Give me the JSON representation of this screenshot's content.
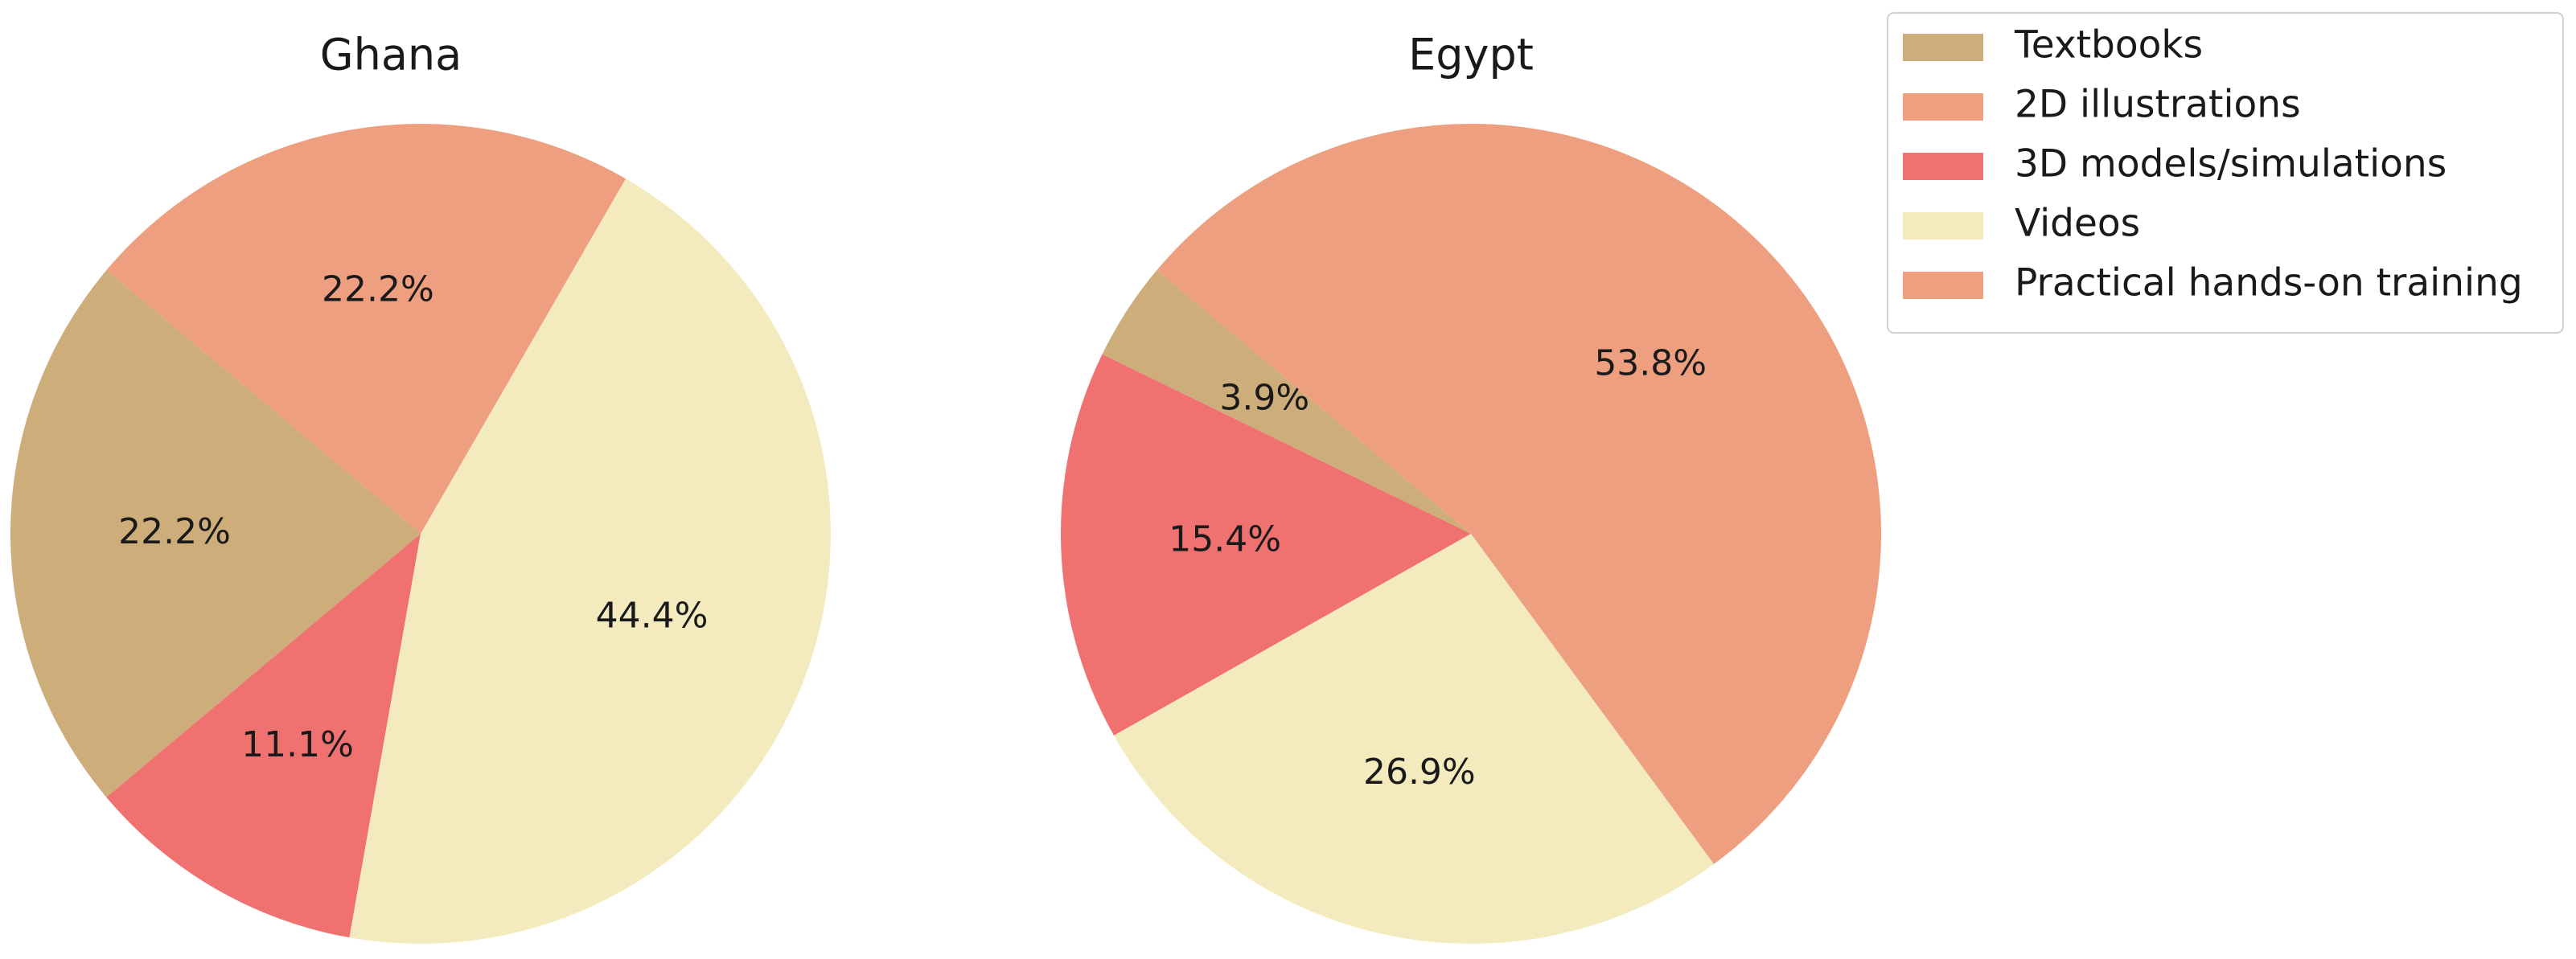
{
  "chart_data": [
    {
      "type": "pie",
      "title": "Ghana",
      "categories": [
        "Textbooks",
        "3D models/simulations",
        "Videos",
        "Practical hands-on training"
      ],
      "values": [
        22.2,
        11.1,
        44.4,
        22.2
      ],
      "value_labels": [
        "22.2%",
        "11.1%",
        "44.4%",
        "22.2%"
      ],
      "colors": [
        "#cdad7a",
        "#ef7270",
        "#f3ebbe",
        "#ee9f80"
      ],
      "start_angle": 140,
      "counterclockwise": true
    },
    {
      "type": "pie",
      "title": "Egypt",
      "categories": [
        "Textbooks",
        "3D models/simulations",
        "Videos",
        "Practical hands-on training"
      ],
      "values": [
        3.9,
        15.4,
        26.9,
        53.8
      ],
      "value_labels": [
        "3.9%",
        "15.4%",
        "26.9%",
        "53.8%"
      ],
      "colors": [
        "#cdad7a",
        "#ef7270",
        "#f3ebbe",
        "#ee9f80"
      ],
      "start_angle": 140,
      "counterclockwise": true
    }
  ],
  "legend": {
    "location": "upper right",
    "entries": [
      {
        "name": "Textbooks",
        "color": "#cdad7a"
      },
      {
        "name": "2D illustrations",
        "color": "#ee9f80"
      },
      {
        "name": "3D models/simulations",
        "color": "#ef7270"
      },
      {
        "name": "Videos",
        "color": "#f3ebbe"
      },
      {
        "name": "Practical hands-on training",
        "color": "#ee9f80"
      }
    ]
  }
}
